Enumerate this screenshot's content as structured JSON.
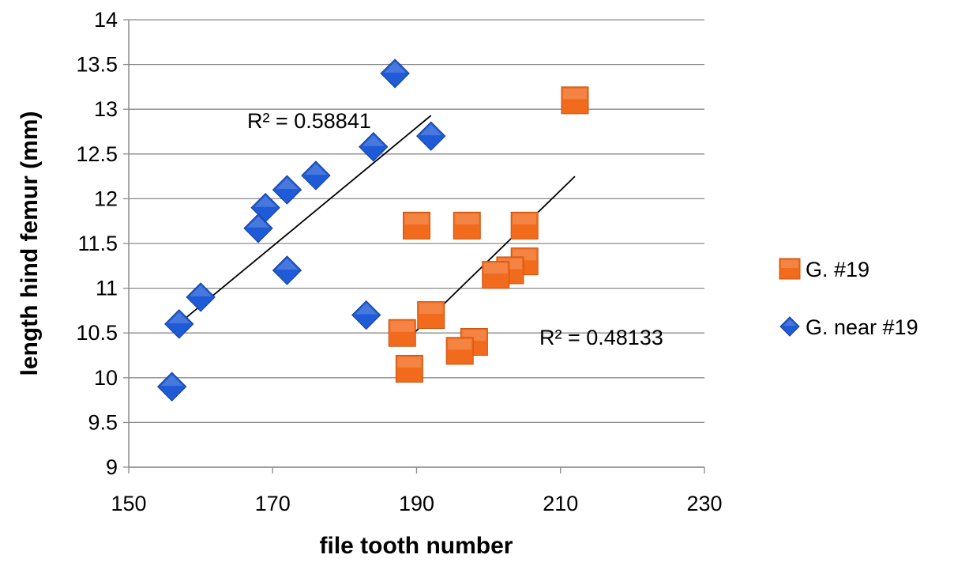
{
  "chart_data": {
    "type": "scatter",
    "title": "",
    "xlabel": "file tooth number",
    "ylabel": "length hind femur (mm)",
    "xlim": [
      150,
      230
    ],
    "ylim": [
      9,
      14
    ],
    "xticks": [
      150,
      170,
      190,
      210,
      230
    ],
    "xtick_labels": [
      "150",
      "170",
      "190",
      "210",
      "230"
    ],
    "yticks": [
      9,
      9.5,
      10,
      10.5,
      11,
      11.5,
      12,
      12.5,
      13,
      13.5,
      14
    ],
    "ytick_labels": [
      "9",
      "9.5",
      "10",
      "10.5",
      "11",
      "11.5",
      "12",
      "12.5",
      "13",
      "13.5",
      "14"
    ],
    "grid": "horizontal",
    "legend_position": "right",
    "series": [
      {
        "name": "G. #19",
        "marker": "square",
        "color": "#f26a1b",
        "x": [
          212,
          190,
          197,
          205,
          205,
          203,
          201,
          192,
          188,
          198,
          196,
          189
        ],
        "y": [
          13.1,
          11.7,
          11.7,
          11.7,
          11.3,
          11.2,
          11.15,
          10.7,
          10.5,
          10.4,
          10.3,
          10.1
        ],
        "trendline": {
          "x": [
            188,
            212
          ],
          "y": [
            10.37,
            12.25
          ]
        },
        "r2_label": "R² = 0.48133"
      },
      {
        "name": "G. near #19",
        "marker": "diamond",
        "color": "#1f5bd6",
        "x": [
          187,
          192,
          184,
          176,
          172,
          169,
          168,
          172,
          160,
          157,
          183,
          156
        ],
        "y": [
          13.4,
          12.7,
          12.58,
          12.26,
          12.1,
          11.9,
          11.67,
          11.2,
          10.9,
          10.6,
          10.7,
          9.9
        ],
        "trendline": {
          "x": [
            156,
            192
          ],
          "y": [
            10.54,
            12.93
          ]
        },
        "r2_label": "R² = 0.58841"
      }
    ]
  }
}
